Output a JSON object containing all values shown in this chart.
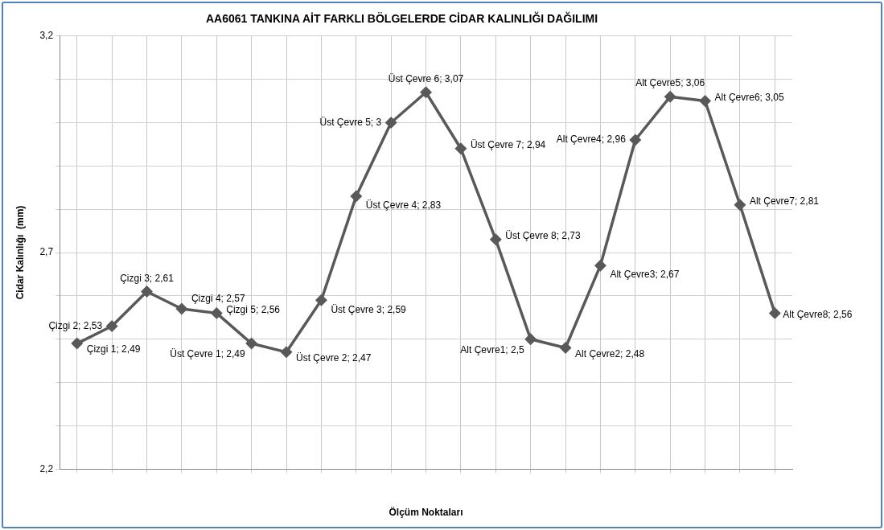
{
  "chart_data": {
    "type": "line",
    "title": "AA6061 TANKINA AİT FARKLI BÖLGELERDE CİDAR KALINLIĞI DAĞILIMI",
    "xlabel": "Ölçüm Noktaları",
    "ylabel": "Cidar Kalınlığı  (mm)",
    "categories": [
      null,
      null,
      null,
      null,
      null,
      null,
      null,
      null,
      null,
      null,
      null,
      null,
      null,
      null,
      null,
      null,
      null,
      null,
      null,
      null,
      null
    ],
    "series": [
      {
        "color": "#595959",
        "values": [
          2.49,
          2.53,
          2.61,
          2.57,
          2.56,
          2.49,
          2.47,
          2.59,
          2.83,
          3,
          3.07,
          2.94,
          2.73,
          2.5,
          2.48,
          2.67,
          2.96,
          3.06,
          3.05,
          2.81,
          2.56
        ],
        "value_labels": [
          "Çizgi 1; 2,49",
          "Çizgi 2; 2,53",
          "Çizgi 3; 2,61",
          "Çizgi 4; 2,57",
          "Çizgi 5; 2,56",
          "Üst Çevre 1; 2,49",
          "Üst Çevre 2; 2,47",
          "Üst Çevre 3; 2,59",
          "Üst Çevre 4; 2,83",
          "Üst Çevre 5; 3",
          "Üst Çevre 6; 3,07",
          "Üst Çevre 7; 2,94",
          "Üst Çevre 8; 2,73",
          "Alt Çevre1; 2,5",
          "Alt Çevre2; 2,48",
          "Alt Çevre3; 2,67",
          "Alt Çevre4; 2,96",
          "Alt Çevre5; 3,06",
          "Alt Çevre6; 3,05",
          "Alt Çevre7; 2,81",
          "Alt Çevre8; 2,56"
        ]
      }
    ],
    "ylim": [
      2.2,
      3.2
    ],
    "yticks": [
      {
        "value": 2.2,
        "label": "2,2"
      },
      {
        "value": 2.3,
        "label": null
      },
      {
        "value": 2.4,
        "label": null
      },
      {
        "value": 2.5,
        "label": null
      },
      {
        "value": 2.6,
        "label": null
      },
      {
        "value": 2.7,
        "label": "2,7"
      },
      {
        "value": 2.8,
        "label": null
      },
      {
        "value": 2.9,
        "label": null
      },
      {
        "value": 3,
        "label": null
      },
      {
        "value": 3.1,
        "label": null
      },
      {
        "value": 3.2,
        "label": "3,2"
      }
    ],
    "grid": true,
    "marker": "diamond",
    "line_style": "solid"
  }
}
